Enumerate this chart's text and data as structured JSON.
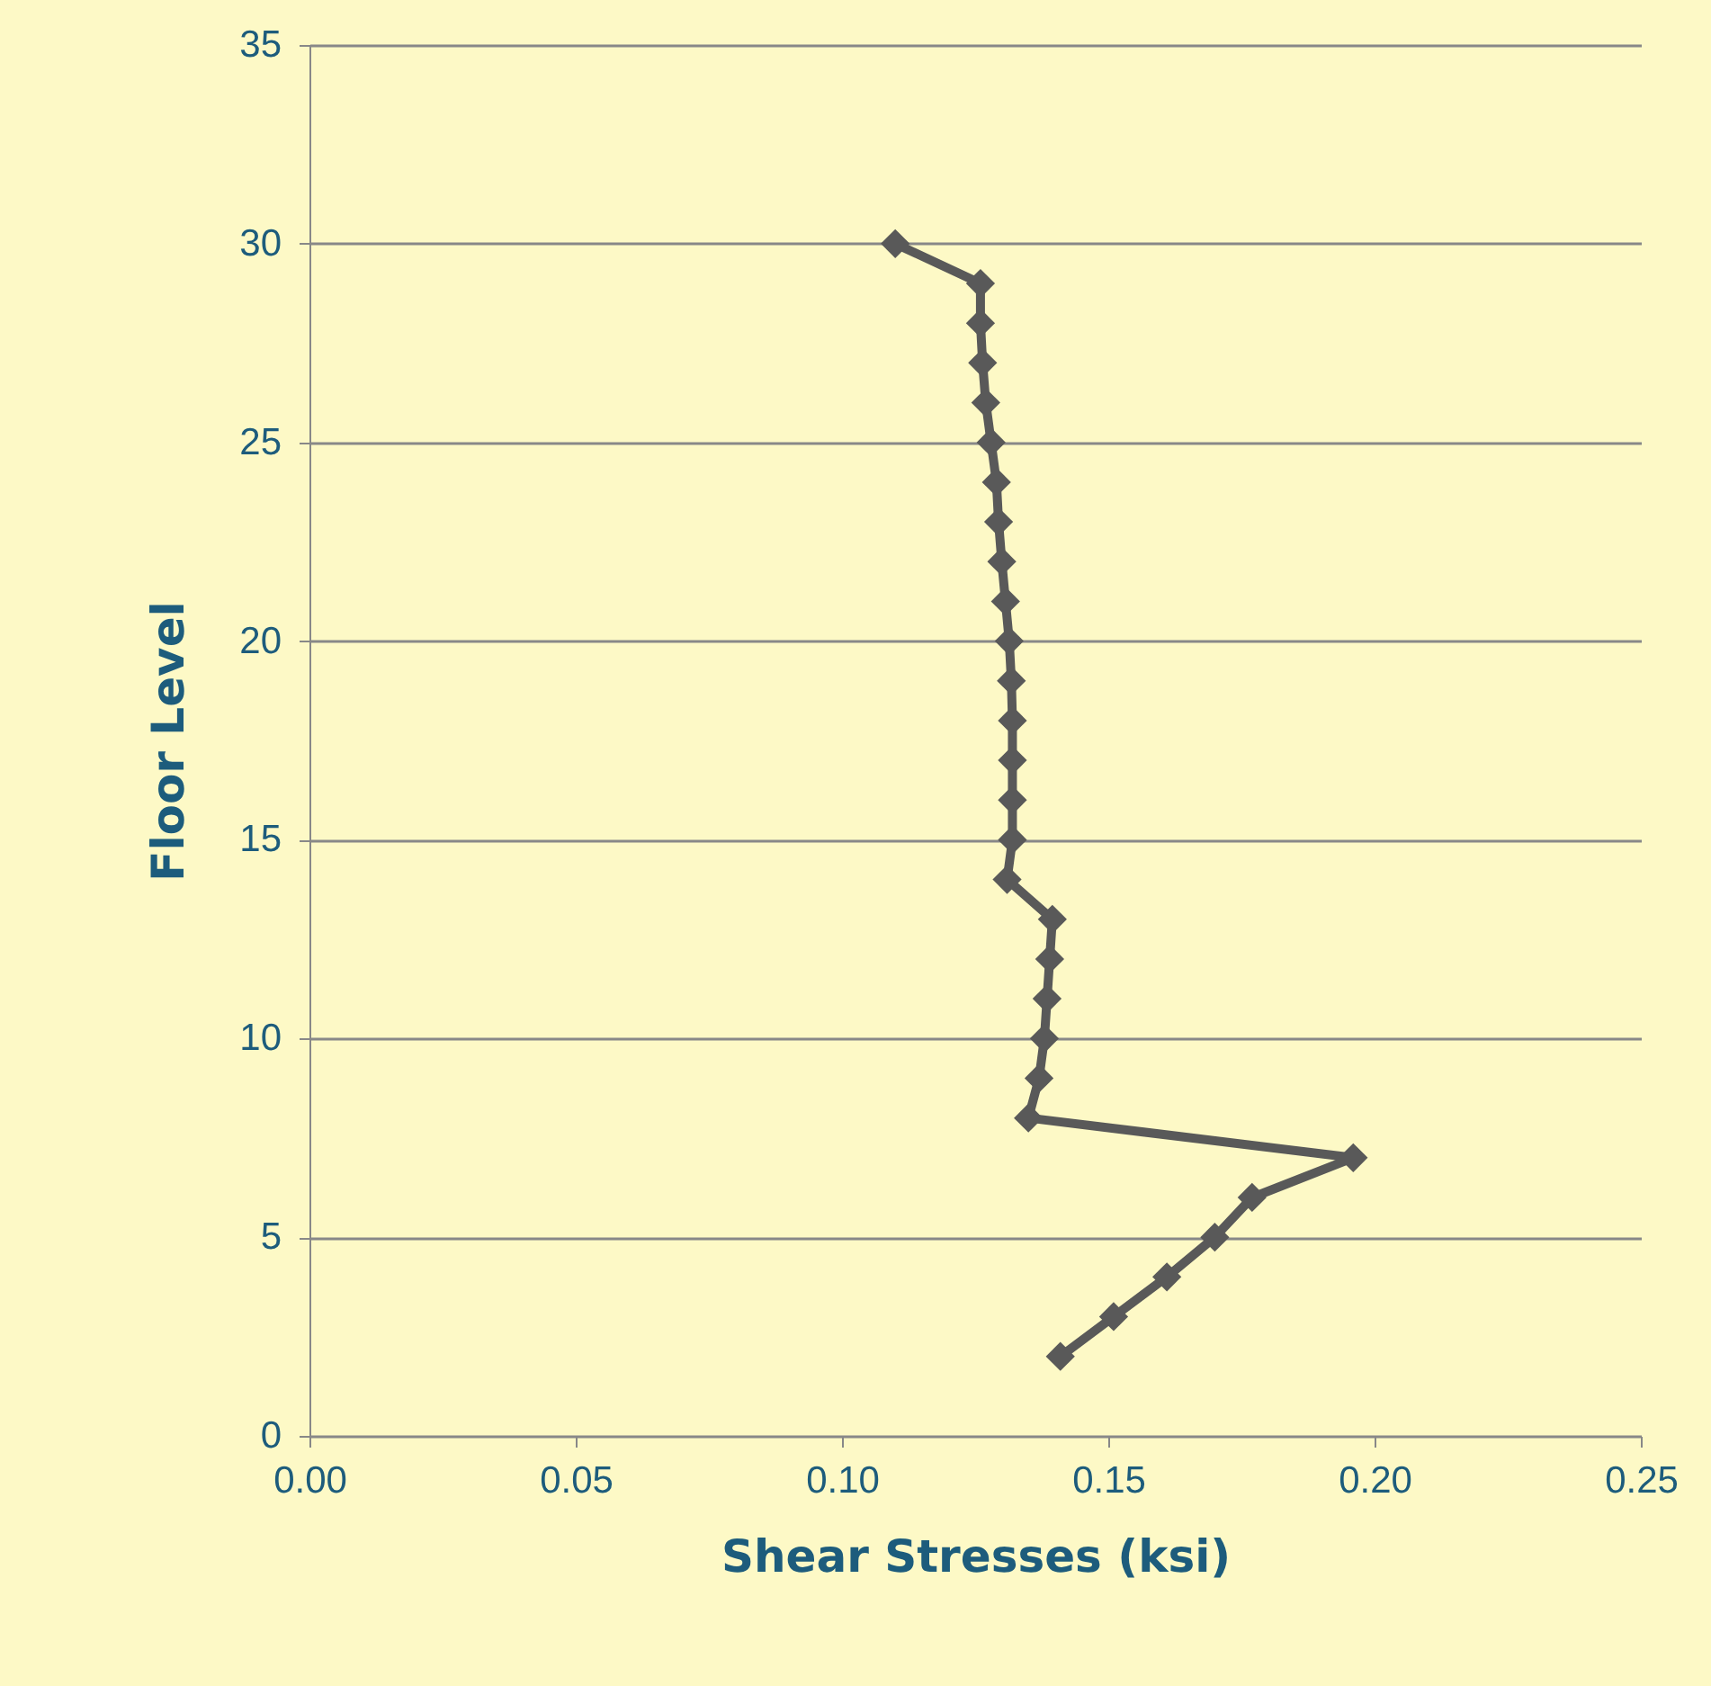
{
  "chart_data": {
    "type": "line",
    "xlabel": "Shear Stresses (ksi)",
    "ylabel": "Floor Level",
    "x": [
      0.11,
      0.126,
      0.126,
      0.1264,
      0.127,
      0.128,
      0.129,
      0.1294,
      0.13,
      0.1307,
      0.1314,
      0.1318,
      0.132,
      0.132,
      0.132,
      0.132,
      0.131,
      0.1395,
      0.139,
      0.1385,
      0.138,
      0.137,
      0.135,
      0.196,
      0.177,
      0.17,
      0.161,
      0.151,
      0.141
    ],
    "series": [
      {
        "color": "#595959",
        "values": [
          30,
          29,
          28,
          27,
          26,
          25,
          24,
          23,
          22,
          21,
          20,
          19,
          18,
          17,
          16,
          15,
          14,
          13,
          12,
          11,
          10,
          9,
          8,
          7,
          6,
          5,
          4,
          3,
          2
        ]
      }
    ],
    "xlim": [
      0,
      0.25
    ],
    "xticks": [
      {
        "value": 0,
        "label": "0.00"
      },
      {
        "value": 0.05,
        "label": "0.05"
      },
      {
        "value": 0.1,
        "label": "0.10"
      },
      {
        "value": 0.15,
        "label": "0.15"
      },
      {
        "value": 0.2,
        "label": "0.20"
      },
      {
        "value": 0.25,
        "label": "0.25"
      }
    ],
    "ylim": [
      0,
      35
    ],
    "yticks": [
      0,
      5,
      10,
      15,
      20,
      25,
      30,
      35
    ],
    "grid": "y",
    "marker": "diamond",
    "line_style": "solid"
  }
}
